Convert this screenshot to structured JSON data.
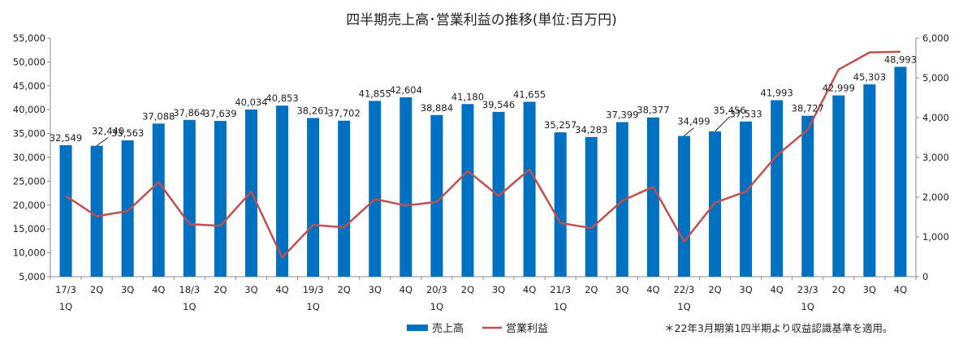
{
  "chart_data": {
    "type": "bar+line",
    "title": "四半期売上高･営業利益の推移(単位:百万円)",
    "categories": [
      [
        "17/3",
        "1Q"
      ],
      [
        "2Q"
      ],
      [
        "3Q"
      ],
      [
        "4Q"
      ],
      [
        "18/3",
        "1Q"
      ],
      [
        "2Q"
      ],
      [
        "3Q"
      ],
      [
        "4Q"
      ],
      [
        "19/3",
        "1Q"
      ],
      [
        "2Q"
      ],
      [
        "3Q"
      ],
      [
        "4Q"
      ],
      [
        "20/3",
        "1Q"
      ],
      [
        "2Q"
      ],
      [
        "3Q"
      ],
      [
        "4Q"
      ],
      [
        "21/3",
        "1Q"
      ],
      [
        "2Q"
      ],
      [
        "3Q"
      ],
      [
        "4Q"
      ],
      [
        "22/3",
        "1Q"
      ],
      [
        "2Q"
      ],
      [
        "3Q"
      ],
      [
        "4Q"
      ],
      [
        "23/3",
        "1Q"
      ],
      [
        "2Q"
      ],
      [
        "3Q"
      ],
      [
        "4Q"
      ]
    ],
    "series": [
      {
        "name": "売上高",
        "kind": "bar",
        "axis": "left",
        "color": "#0070C0",
        "values": [
          32549,
          32440,
          33563,
          37088,
          37864,
          37639,
          40034,
          40853,
          38261,
          37702,
          41855,
          42604,
          38884,
          41180,
          39546,
          41655,
          35257,
          34283,
          37399,
          38377,
          34499,
          35456,
          37533,
          41993,
          38727,
          42999,
          45303,
          48993
        ],
        "labels": [
          "32,549",
          "32,440",
          "33,563",
          "37,088",
          "37,864",
          "37,639",
          "40,034",
          "40,853",
          "38,261",
          "37,702",
          "41,855",
          "42,604",
          "38,884",
          "41,180",
          "39,546",
          "41,655",
          "35,257",
          "34,283",
          "37,399",
          "38,377",
          "34,499",
          "35,456",
          "37,533",
          "41,993",
          "38,727",
          "42,999",
          "45,303",
          "48,993"
        ]
      },
      {
        "name": "営業利益",
        "kind": "line",
        "axis": "right",
        "color": "#C0504D",
        "values": [
          2030,
          1520,
          1650,
          2380,
          1320,
          1280,
          2140,
          480,
          1300,
          1240,
          1950,
          1790,
          1880,
          2660,
          2030,
          2700,
          1350,
          1220,
          1910,
          2260,
          880,
          1860,
          2140,
          3050,
          3700,
          5210,
          5640,
          5660
        ]
      }
    ],
    "yleft": {
      "ylim": [
        5000,
        55000
      ],
      "ticks": [
        "5,000",
        "10,000",
        "15,000",
        "20,000",
        "25,000",
        "30,000",
        "35,000",
        "40,000",
        "45,000",
        "50,000",
        "55,000"
      ]
    },
    "yright": {
      "ylim": [
        0,
        6000
      ],
      "ticks": [
        "0",
        "1,000",
        "2,000",
        "3,000",
        "4,000",
        "5,000",
        "6,000"
      ]
    },
    "grid": false,
    "legend": "bottom",
    "note": "＊22年3月期第1四半期より収益認識基準を適用。"
  }
}
